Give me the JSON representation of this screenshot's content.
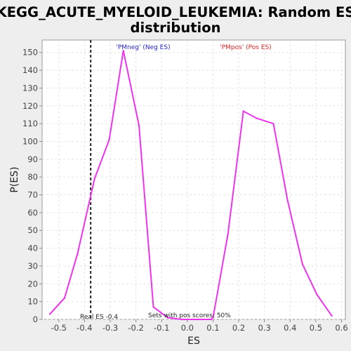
{
  "chart_data": {
    "type": "line",
    "title_line1": "KEGG_ACUTE_MYELOID_LEUKEMIA: Random ES",
    "title_line2": "distribution",
    "xlabel": "ES",
    "ylabel": "P(ES)",
    "xlim": [
      -0.565,
      0.615
    ],
    "ylim": [
      0,
      157
    ],
    "x_ticks": [
      -0.5,
      -0.4,
      -0.3,
      -0.2,
      -0.1,
      0.0,
      0.1,
      0.2,
      0.3,
      0.4,
      0.5,
      0.6
    ],
    "x_tick_labels": [
      "-0.5",
      "-0.4",
      "-0.3",
      "-0.2",
      "-0.1",
      "0.0",
      "0.1",
      "0.2",
      "0.3",
      "0.4",
      "0.5",
      "0.6"
    ],
    "y_ticks": [
      0,
      10,
      20,
      30,
      40,
      50,
      60,
      70,
      80,
      90,
      100,
      110,
      120,
      130,
      140,
      150
    ],
    "grid": true,
    "line_color": "#ee33ee",
    "real_es": -0.376,
    "series": [
      {
        "x": [
          -0.535,
          -0.478,
          -0.427,
          -0.361,
          -0.304,
          -0.249,
          -0.188,
          -0.132,
          -0.076,
          -0.02,
          0.037,
          0.093,
          0.1,
          0.158,
          0.218,
          0.27,
          0.335,
          0.39,
          0.448,
          0.504,
          0.562
        ],
        "y": [
          3,
          12,
          37,
          79,
          101,
          151,
          109,
          7,
          1,
          0,
          0,
          0,
          1,
          48,
          117,
          113,
          110,
          67,
          31,
          14,
          2
        ]
      }
    ],
    "annotations": {
      "neg_label": "'PMneg' (Neg ES)",
      "neg_color": "#2222cc",
      "pos_label": "'PMpos' (Pos ES)",
      "pos_color": "#dd2222",
      "real_es_label": "Real ES -0.4",
      "pos_scores_label": "Sets with pos scores: 50%"
    }
  }
}
